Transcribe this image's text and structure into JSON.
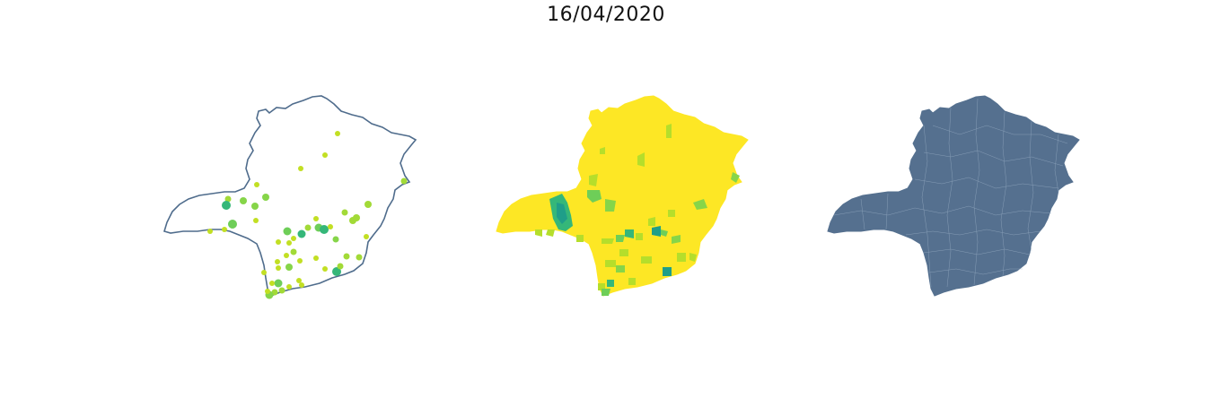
{
  "title": "16/04/2020",
  "colors": {
    "outline": "#4f6c8c",
    "fill_dark": "#55708f",
    "viridis_yellow": "#fde725",
    "viridis_lime": "#b5de2b",
    "viridis_green": "#6ece58",
    "viridis_mid": "#35b779",
    "viridis_teal": "#1f9e89"
  },
  "panels": [
    {
      "name": "case-bubble-map",
      "style": "outline-with-bubbles"
    },
    {
      "name": "municipal-choropleth",
      "style": "choropleth-viridis"
    },
    {
      "name": "municipal-boundaries",
      "style": "filled-with-borders"
    }
  ]
}
